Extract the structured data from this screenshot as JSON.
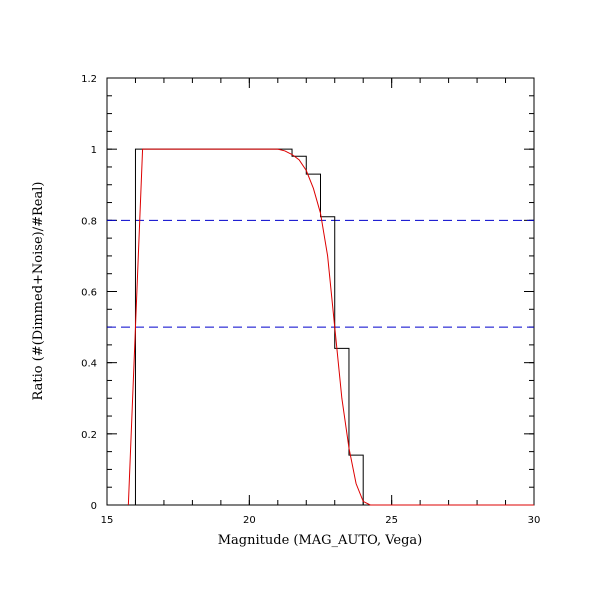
{
  "chart_data": {
    "type": "line",
    "xlabel": "Magnitude (MAG_AUTO, Vega)",
    "ylabel": "Ratio (#(Dimmed+Noise)/#Real)",
    "xlim": [
      15,
      30
    ],
    "ylim": [
      0,
      1.2
    ],
    "xticks": [
      "15",
      "20",
      "25",
      "30"
    ],
    "xtick_values": [
      15,
      20,
      25,
      30
    ],
    "yticks": [
      "0",
      "0.2",
      "0.4",
      "0.6",
      "0.8",
      "1",
      "1.2"
    ],
    "ytick_values": [
      0,
      0.2,
      0.4,
      0.6,
      0.8,
      1.0,
      1.2
    ],
    "grid": false,
    "reference_lines": [
      {
        "y": 0.8,
        "style": "dashed",
        "color": "#0000cc"
      },
      {
        "y": 0.5,
        "style": "dashed",
        "color": "#0000cc"
      }
    ],
    "series": [
      {
        "type": "step-histogram",
        "color": "#000000",
        "bin_width": 0.5,
        "bin_edges": [
          15.5,
          16.0,
          16.5,
          17.0,
          17.5,
          18.0,
          18.5,
          19.0,
          19.5,
          20.0,
          20.5,
          21.0,
          21.5,
          22.0,
          22.5,
          23.0,
          23.5,
          24.0,
          24.5,
          25.0,
          25.5,
          26.0,
          26.5,
          27.0,
          27.5,
          28.0,
          28.5,
          29.0,
          29.5,
          30.0
        ],
        "values": [
          0,
          1.0,
          1.0,
          1.0,
          1.0,
          1.0,
          1.0,
          1.0,
          1.0,
          1.0,
          1.0,
          1.0,
          0.98,
          0.93,
          0.81,
          0.44,
          0.14,
          0,
          0,
          0,
          0,
          0,
          0,
          0,
          0,
          0,
          0,
          0,
          0
        ]
      },
      {
        "type": "line",
        "color": "#dd0000",
        "x": [
          15.75,
          16.0,
          16.25,
          17.0,
          18.0,
          19.0,
          20.0,
          20.5,
          21.0,
          21.25,
          21.5,
          21.75,
          22.0,
          22.25,
          22.5,
          22.75,
          23.0,
          23.25,
          23.5,
          23.75,
          24.0,
          24.25,
          25.0,
          26.0,
          27.0,
          28.0,
          29.0,
          30.0
        ],
        "y": [
          0.0,
          0.5,
          1.0,
          1.0,
          1.0,
          1.0,
          1.0,
          1.0,
          1.0,
          0.995,
          0.985,
          0.97,
          0.94,
          0.89,
          0.82,
          0.7,
          0.5,
          0.3,
          0.16,
          0.06,
          0.01,
          0.0,
          0.0,
          0.0,
          0.0,
          0.0,
          0.0,
          0.0
        ]
      }
    ]
  }
}
